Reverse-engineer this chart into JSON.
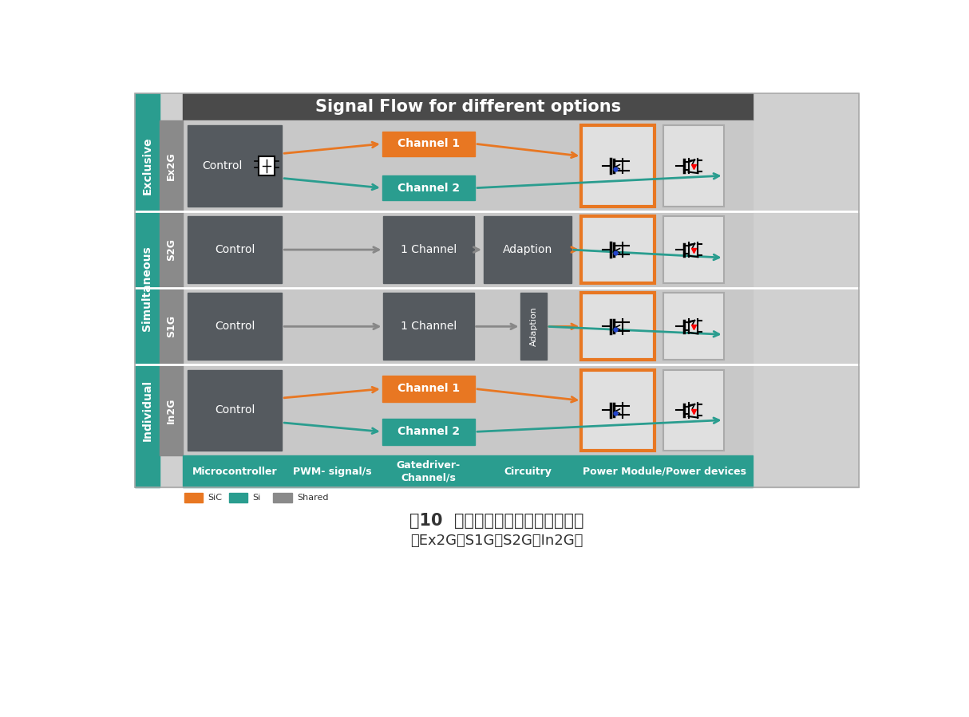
{
  "title": "Signal Flow for different options",
  "caption_line1": "图10  融合技术的不同驱动控制策略",
  "caption_line2": "（Ex2G、S1G、S2G、In2G）",
  "teal_color": "#2a9d8f",
  "orange_color": "#e87722",
  "dark_gray_block": "#555a5f",
  "med_gray": "#8a8a8a",
  "light_gray_bg": "#d0d0d0",
  "header_bg": "#4a4a4a",
  "row_bg": "#c8c8c8",
  "white": "#ffffff",
  "left_group_labels": [
    "Exclusive",
    "Simultaneous",
    "Individual"
  ],
  "sub_labels": [
    "Ex2G",
    "S2G",
    "S1G",
    "In2G"
  ],
  "col_labels": [
    "Microcontroller",
    "PWM- signal/s",
    "Gatedriver-\nChannel/s",
    "Circuitry",
    "Power Module/Power devices"
  ],
  "legend": [
    {
      "label": "SiC",
      "color": "#e87722"
    },
    {
      "label": "Si",
      "color": "#2a9d8f"
    },
    {
      "label": "Shared",
      "color": "#8a8a8a"
    }
  ]
}
